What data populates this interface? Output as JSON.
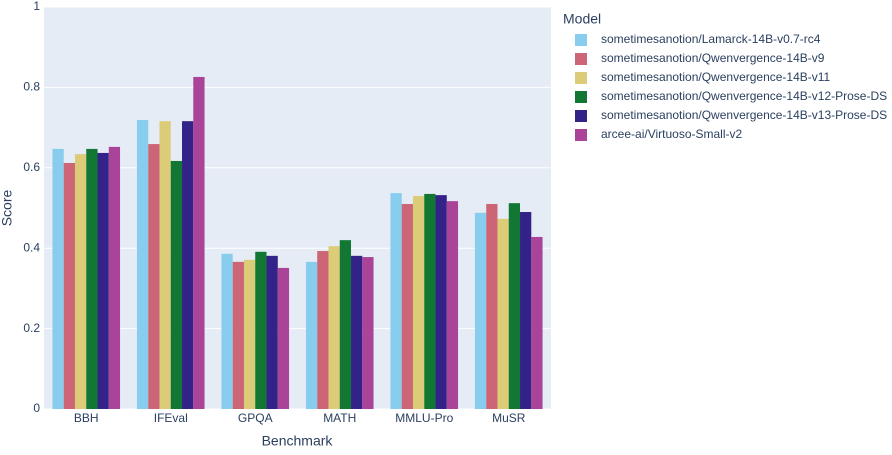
{
  "chart_data": {
    "type": "bar",
    "x_label": "Benchmark",
    "y_label": "Score",
    "legend_title": "Model",
    "categories": [
      "BBH",
      "IFEval",
      "GPQA",
      "MATH",
      "MMLU-Pro",
      "MuSR"
    ],
    "series": [
      {
        "name": "sometimesanotion/Lamarck-14B-v0.7-rc4",
        "color": "#88ccee",
        "values": [
          0.647,
          0.719,
          0.386,
          0.366,
          0.537,
          0.488
        ]
      },
      {
        "name": "sometimesanotion/Qwenvergence-14B-v9",
        "color": "#cc6677",
        "values": [
          0.612,
          0.659,
          0.366,
          0.393,
          0.51,
          0.51
        ]
      },
      {
        "name": "sometimesanotion/Qwenvergence-14B-v11",
        "color": "#ddcc77",
        "values": [
          0.634,
          0.716,
          0.371,
          0.405,
          0.53,
          0.473
        ]
      },
      {
        "name": "sometimesanotion/Qwenvergence-14B-v12-Prose-DS",
        "color": "#117733",
        "values": [
          0.647,
          0.617,
          0.391,
          0.42,
          0.535,
          0.512
        ]
      },
      {
        "name": "sometimesanotion/Qwenvergence-14B-v13-Prose-DS",
        "color": "#332288",
        "values": [
          0.637,
          0.716,
          0.381,
          0.381,
          0.532,
          0.49
        ]
      },
      {
        "name": "arcee-ai/Virtuoso-Small-v2",
        "color": "#aa4499",
        "values": [
          0.652,
          0.826,
          0.351,
          0.378,
          0.517,
          0.428
        ]
      }
    ],
    "ylim": [
      0,
      1
    ],
    "yticks": [
      0,
      0.2,
      0.4,
      0.6,
      0.8,
      1
    ],
    "grid": true
  }
}
